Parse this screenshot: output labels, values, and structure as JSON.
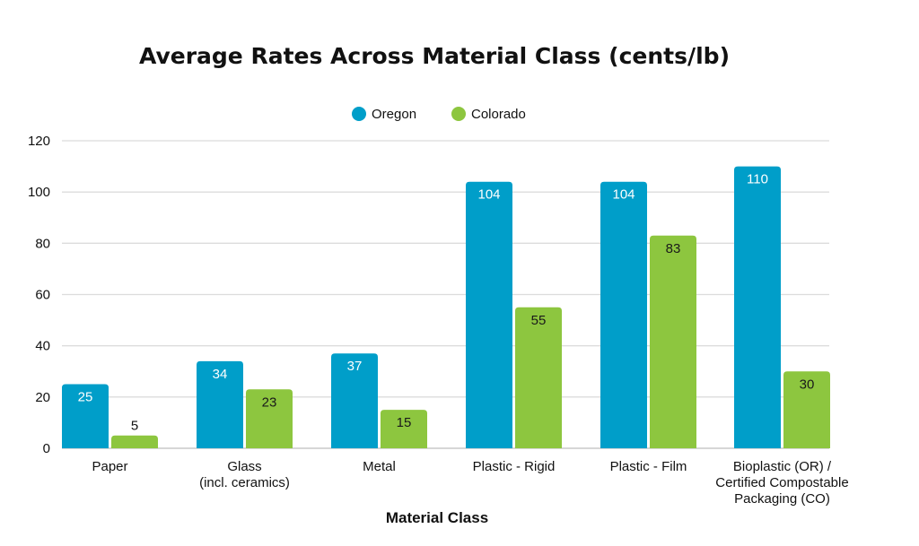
{
  "chart_data": {
    "type": "bar",
    "title": "Average Rates Across Material Class (cents/lb)",
    "xlabel": "Material Class",
    "ylabel": "",
    "ylim": [
      0,
      120
    ],
    "yticks": [
      0,
      20,
      40,
      60,
      80,
      100,
      120
    ],
    "grid": true,
    "legend_position": "top-center",
    "categories": [
      [
        "Paper"
      ],
      [
        "Glass",
        "(incl. ceramics)"
      ],
      [
        "Metal"
      ],
      [
        "Plastic - Rigid"
      ],
      [
        "Plastic - Film"
      ],
      [
        "Bioplastic (OR) /",
        "Certified Compostable",
        "Packaging (CO)"
      ]
    ],
    "series": [
      {
        "name": "Oregon",
        "color": "#009ec9",
        "label_color": "#ffffff",
        "values": [
          25,
          34,
          37,
          104,
          104,
          110
        ]
      },
      {
        "name": "Colorado",
        "color": "#8dc63f",
        "label_color": "#1a1a1a",
        "values": [
          5,
          23,
          15,
          55,
          83,
          30
        ]
      }
    ]
  }
}
